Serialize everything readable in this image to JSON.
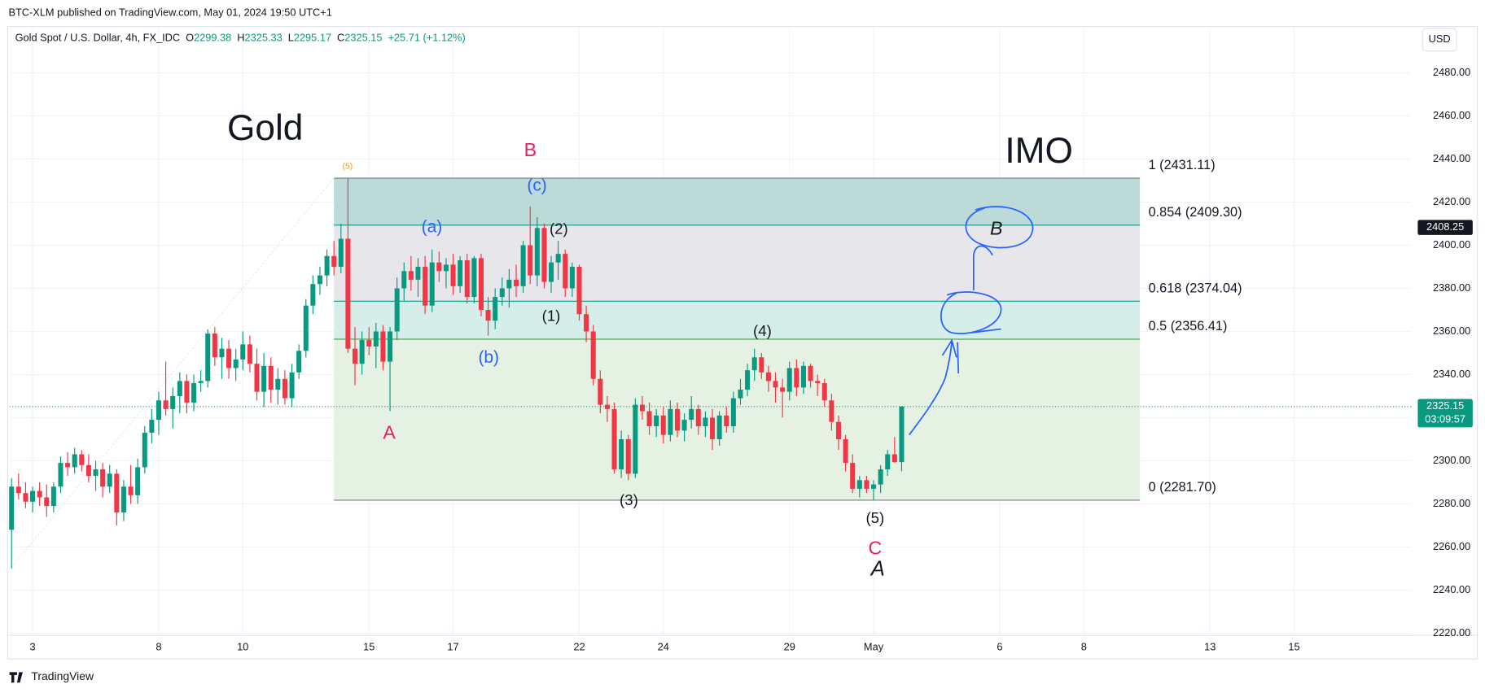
{
  "header": {
    "published": "BTC-XLM published on TradingView.com, May 01, 2024 19:50 UTC+1",
    "symbol": "Gold Spot / U.S. Dollar, 4h, FX_IDC",
    "ohlc_labels": [
      "O",
      "H",
      "L",
      "C"
    ],
    "change": "+25.71 (+1.12%)",
    "currency": "USD",
    "brand": "TradingView"
  },
  "chart_data": {
    "type": "candlestick",
    "up_color": "#089981",
    "down_color": "#f23645",
    "grid": true,
    "xlim": [
      -0.3,
      199.7
    ],
    "ylim": [
      2219,
      2501.5
    ],
    "xticks": [
      {
        "value": 3,
        "label": "3"
      },
      {
        "value": 21,
        "label": "8"
      },
      {
        "value": 33,
        "label": "10"
      },
      {
        "value": 51,
        "label": "15"
      },
      {
        "value": 63,
        "label": "17"
      },
      {
        "value": 81,
        "label": "22"
      },
      {
        "value": 93,
        "label": "24"
      },
      {
        "value": 111,
        "label": "29"
      },
      {
        "value": 123,
        "label": "May"
      },
      {
        "value": 141,
        "label": "6"
      },
      {
        "value": 153,
        "label": "8"
      },
      {
        "value": 171,
        "label": "13"
      },
      {
        "value": 183,
        "label": "15"
      }
    ],
    "yticks": [
      {
        "value": 2220,
        "label": "2220.00"
      },
      {
        "value": 2240,
        "label": "2240.00"
      },
      {
        "value": 2260,
        "label": "2260.00"
      },
      {
        "value": 2280,
        "label": "2280.00"
      },
      {
        "value": 2300,
        "label": "2300.00"
      },
      {
        "value": 2320,
        "label": "2320.00"
      },
      {
        "value": 2340,
        "label": "2340.00"
      },
      {
        "value": 2360,
        "label": "2360.00"
      },
      {
        "value": 2380,
        "label": "2380.00"
      },
      {
        "value": 2400,
        "label": "2400.00"
      },
      {
        "value": 2420,
        "label": "2420.00"
      },
      {
        "value": 2440,
        "label": "2440.00"
      },
      {
        "value": 2460,
        "label": "2460.00"
      },
      {
        "value": 2480,
        "label": "2480.00"
      }
    ],
    "countdown": "03:09:57",
    "marker_price": 2408.25,
    "fib": {
      "start": 46,
      "end": 161,
      "levels": [
        {
          "value": 2431.11,
          "label": "1 (2431.11)",
          "color": "#787b86",
          "fill": "#bcdad7"
        },
        {
          "value": 2409.3,
          "label": "0.854 (2409.30)",
          "color": "#089981",
          "fill": "#e7e7eb"
        },
        {
          "value": 2374.04,
          "label": "0.618 (2374.04)",
          "color": "#089981",
          "fill": "#d6eeea"
        },
        {
          "value": 2356.41,
          "label": "0.5 (2356.41)",
          "color": "#4caf50",
          "fill": "#e5f2e3"
        },
        {
          "value": 2281.7,
          "label": "0 (2281.70)",
          "color": "#787b86"
        }
      ]
    },
    "annotations": [
      "Gold",
      "IMO",
      "B",
      "(c)",
      "(5)",
      "(a)",
      "(2)",
      "(1)",
      "(b)",
      "A",
      "(4)",
      "(3)",
      "(5)",
      "C",
      "A",
      "B"
    ],
    "ohlc": [
      [
        2268,
        2292,
        2250,
        2288
      ],
      [
        2288,
        2294,
        2282,
        2285
      ],
      [
        2285,
        2290,
        2278,
        2281
      ],
      [
        2281,
        2288,
        2276,
        2286
      ],
      [
        2286,
        2290,
        2279,
        2283
      ],
      [
        2283,
        2289,
        2274,
        2279
      ],
      [
        2279,
        2290,
        2276,
        2288
      ],
      [
        2288,
        2302,
        2285,
        2299
      ],
      [
        2299,
        2304,
        2293,
        2297
      ],
      [
        2297,
        2306,
        2294,
        2303
      ],
      [
        2303,
        2305,
        2295,
        2298
      ],
      [
        2298,
        2303,
        2290,
        2293
      ],
      [
        2293,
        2300,
        2286,
        2296
      ],
      [
        2296,
        2299,
        2283,
        2288
      ],
      [
        2288,
        2298,
        2285,
        2294
      ],
      [
        2294,
        2296,
        2270,
        2276
      ],
      [
        2276,
        2291,
        2272,
        2288
      ],
      [
        2288,
        2298,
        2280,
        2284
      ],
      [
        2284,
        2301,
        2280,
        2297
      ],
      [
        2297,
        2316,
        2294,
        2313
      ],
      [
        2313,
        2324,
        2308,
        2319
      ],
      [
        2319,
        2332,
        2312,
        2328
      ],
      [
        2328,
        2346,
        2321,
        2324
      ],
      [
        2324,
        2334,
        2315,
        2330
      ],
      [
        2330,
        2341,
        2322,
        2337
      ],
      [
        2337,
        2340,
        2322,
        2327
      ],
      [
        2327,
        2340,
        2323,
        2336
      ],
      [
        2336,
        2342,
        2332,
        2337
      ],
      [
        2337,
        2361,
        2334,
        2359
      ],
      [
        2359,
        2362,
        2344,
        2348
      ],
      [
        2348,
        2357,
        2338,
        2352
      ],
      [
        2352,
        2356,
        2338,
        2343
      ],
      [
        2343,
        2352,
        2337,
        2347
      ],
      [
        2347,
        2360,
        2342,
        2354
      ],
      [
        2354,
        2358,
        2341,
        2345
      ],
      [
        2345,
        2352,
        2328,
        2332
      ],
      [
        2332,
        2350,
        2325,
        2344
      ],
      [
        2344,
        2348,
        2327,
        2333
      ],
      [
        2333,
        2343,
        2326,
        2338
      ],
      [
        2338,
        2342,
        2326,
        2329
      ],
      [
        2329,
        2345,
        2325,
        2341
      ],
      [
        2341,
        2354,
        2338,
        2351
      ],
      [
        2351,
        2375,
        2348,
        2372
      ],
      [
        2372,
        2386,
        2368,
        2382
      ],
      [
        2382,
        2390,
        2377,
        2386
      ],
      [
        2386,
        2398,
        2381,
        2395
      ],
      [
        2395,
        2402,
        2386,
        2390
      ],
      [
        2390,
        2410,
        2387,
        2403
      ],
      [
        2403,
        2431,
        2350,
        2352
      ],
      [
        2352,
        2362,
        2335,
        2345
      ],
      [
        2345,
        2360,
        2340,
        2356
      ],
      [
        2356,
        2362,
        2349,
        2353
      ],
      [
        2353,
        2364,
        2343,
        2360
      ],
      [
        2360,
        2363,
        2342,
        2346
      ],
      [
        2346,
        2362,
        2323,
        2360
      ],
      [
        2360,
        2385,
        2356,
        2380
      ],
      [
        2380,
        2392,
        2374,
        2388
      ],
      [
        2388,
        2395,
        2379,
        2384
      ],
      [
        2384,
        2394,
        2376,
        2390
      ],
      [
        2390,
        2395,
        2368,
        2372
      ],
      [
        2372,
        2398,
        2369,
        2392
      ],
      [
        2392,
        2397,
        2383,
        2388
      ],
      [
        2388,
        2394,
        2380,
        2391
      ],
      [
        2391,
        2396,
        2377,
        2381
      ],
      [
        2381,
        2395,
        2378,
        2393
      ],
      [
        2393,
        2396,
        2373,
        2376
      ],
      [
        2376,
        2395,
        2373,
        2394
      ],
      [
        2394,
        2396,
        2367,
        2370
      ],
      [
        2370,
        2376,
        2358,
        2365
      ],
      [
        2365,
        2380,
        2361,
        2376
      ],
      [
        2376,
        2385,
        2372,
        2380
      ],
      [
        2380,
        2389,
        2371,
        2384
      ],
      [
        2384,
        2391,
        2376,
        2381
      ],
      [
        2381,
        2402,
        2378,
        2400
      ],
      [
        2400,
        2418,
        2382,
        2386
      ],
      [
        2386,
        2413,
        2381,
        2408
      ],
      [
        2408,
        2410,
        2380,
        2383
      ],
      [
        2383,
        2395,
        2378,
        2392
      ],
      [
        2392,
        2402,
        2384,
        2396
      ],
      [
        2396,
        2398,
        2376,
        2380
      ],
      [
        2380,
        2392,
        2376,
        2390
      ],
      [
        2390,
        2391,
        2365,
        2368
      ],
      [
        2368,
        2372,
        2355,
        2360
      ],
      [
        2360,
        2363,
        2335,
        2338
      ],
      [
        2338,
        2342,
        2322,
        2326
      ],
      [
        2326,
        2330,
        2318,
        2324
      ],
      [
        2324,
        2327,
        2294,
        2296
      ],
      [
        2296,
        2314,
        2292,
        2310
      ],
      [
        2310,
        2312,
        2291,
        2294
      ],
      [
        2294,
        2329,
        2292,
        2326
      ],
      [
        2326,
        2330,
        2319,
        2323
      ],
      [
        2323,
        2327,
        2312,
        2316
      ],
      [
        2316,
        2324,
        2311,
        2321
      ],
      [
        2321,
        2325,
        2308,
        2312
      ],
      [
        2312,
        2328,
        2309,
        2324
      ],
      [
        2324,
        2327,
        2311,
        2314
      ],
      [
        2314,
        2322,
        2309,
        2319
      ],
      [
        2319,
        2330,
        2315,
        2324
      ],
      [
        2324,
        2326,
        2312,
        2316
      ],
      [
        2316,
        2323,
        2311,
        2320
      ],
      [
        2320,
        2324,
        2305,
        2310
      ],
      [
        2310,
        2323,
        2307,
        2321
      ],
      [
        2321,
        2325,
        2313,
        2316
      ],
      [
        2316,
        2332,
        2313,
        2329
      ],
      [
        2329,
        2338,
        2326,
        2333
      ],
      [
        2333,
        2345,
        2330,
        2342
      ],
      [
        2342,
        2352,
        2337,
        2348
      ],
      [
        2348,
        2350,
        2338,
        2341
      ],
      [
        2341,
        2344,
        2332,
        2337
      ],
      [
        2337,
        2341,
        2327,
        2334
      ],
      [
        2334,
        2338,
        2320,
        2332
      ],
      [
        2332,
        2346,
        2328,
        2343
      ],
      [
        2343,
        2347,
        2330,
        2334
      ],
      [
        2334,
        2346,
        2331,
        2344
      ],
      [
        2344,
        2345,
        2334,
        2337
      ],
      [
        2337,
        2340,
        2330,
        2336
      ],
      [
        2336,
        2338,
        2325,
        2328
      ],
      [
        2328,
        2331,
        2314,
        2318
      ],
      [
        2318,
        2321,
        2305,
        2310
      ],
      [
        2310,
        2312,
        2295,
        2299
      ],
      [
        2299,
        2303,
        2285,
        2287
      ],
      [
        2287,
        2293,
        2283,
        2291
      ],
      [
        2291,
        2293,
        2285,
        2287
      ],
      [
        2287,
        2291,
        2281.7,
        2289
      ],
      [
        2289,
        2298,
        2285,
        2296
      ],
      [
        2296,
        2305,
        2293,
        2303
      ],
      [
        2303,
        2311,
        2299,
        2299.38
      ],
      [
        2299.38,
        2325.33,
        2295.17,
        2325.15
      ]
    ]
  }
}
